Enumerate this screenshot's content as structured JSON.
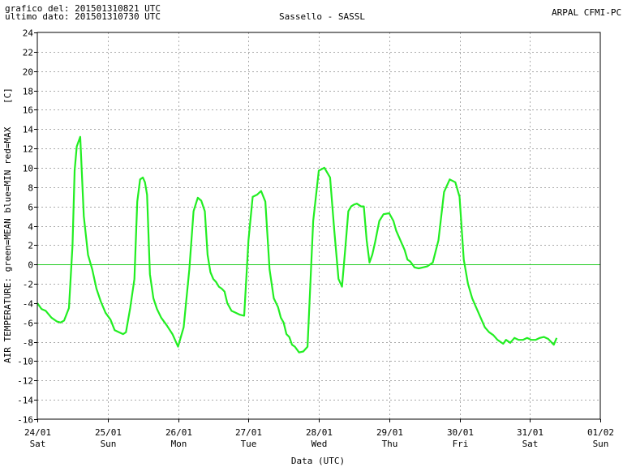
{
  "header": {
    "line1": "grafico del: 201501310821 UTC",
    "line2": "ultimo dato: 201501310730 UTC",
    "station": "Sassello - SASSL",
    "source": "ARPAL CFMI-PC"
  },
  "chart_data": {
    "type": "line",
    "title": "Sassello - SASSL",
    "ylabel": "AIR TEMPERATURE: green=MEAN  blue=MIN  red=MAX",
    "yunit": "[C]",
    "xlabel": "Data (UTC)",
    "ylim": [
      -16,
      24
    ],
    "yticks": [
      24,
      22,
      20,
      18,
      16,
      14,
      12,
      10,
      8,
      6,
      4,
      2,
      0,
      -2,
      -4,
      -6,
      -8,
      -10,
      -12,
      -14,
      -16
    ],
    "xlim": [
      0,
      8
    ],
    "xticks": [
      {
        "date": "24/01",
        "day": "Sat"
      },
      {
        "date": "25/01",
        "day": "Sun"
      },
      {
        "date": "26/01",
        "day": "Mon"
      },
      {
        "date": "27/01",
        "day": "Tue"
      },
      {
        "date": "28/01",
        "day": "Wed"
      },
      {
        "date": "29/01",
        "day": "Thu"
      },
      {
        "date": "30/01",
        "day": "Fri"
      },
      {
        "date": "31/01",
        "day": "Sat"
      },
      {
        "date": "01/02",
        "day": "Sun"
      }
    ],
    "grid": true,
    "colors": {
      "mean": "#22ee22",
      "zero_line": "#22cc22",
      "grid": "#aaaaaa",
      "axis": "#000000"
    },
    "series": [
      {
        "name": "MEAN",
        "x": [
          0.0,
          0.06,
          0.12,
          0.2,
          0.28,
          0.33,
          0.38,
          0.45,
          0.5,
          0.53,
          0.56,
          0.61,
          0.66,
          0.72,
          0.78,
          0.84,
          0.9,
          0.97,
          1.04,
          1.1,
          1.16,
          1.22,
          1.26,
          1.32,
          1.38,
          1.42,
          1.46,
          1.5,
          1.53,
          1.56,
          1.6,
          1.65,
          1.7,
          1.76,
          1.84,
          1.92,
          2.0,
          2.08,
          2.16,
          2.22,
          2.28,
          2.33,
          2.38,
          2.42,
          2.46,
          2.5,
          2.54,
          2.58,
          2.62,
          2.66,
          2.7,
          2.76,
          2.82,
          2.88,
          2.94,
          3.0,
          3.06,
          3.12,
          3.18,
          3.24,
          3.3,
          3.36,
          3.42,
          3.46,
          3.5,
          3.54,
          3.58,
          3.62,
          3.66,
          3.72,
          3.78,
          3.84,
          3.92,
          4.0,
          4.08,
          4.16,
          4.22,
          4.28,
          4.33,
          4.38,
          4.42,
          4.46,
          4.5,
          4.54,
          4.6,
          4.64,
          4.68,
          4.72,
          4.76,
          4.8,
          4.86,
          4.92,
          5.0,
          5.06,
          5.1,
          5.16,
          5.22,
          5.26,
          5.3,
          5.36,
          5.42,
          5.48,
          5.54,
          5.62,
          5.7,
          5.78,
          5.86,
          5.94,
          6.0,
          6.06,
          6.12,
          6.18,
          6.24,
          6.3,
          6.36,
          6.42,
          6.48,
          6.54,
          6.58,
          6.62,
          6.66,
          6.72,
          6.78,
          6.84,
          6.9,
          6.96,
          7.02,
          7.08,
          7.14,
          7.2,
          7.26,
          7.3,
          7.34,
          7.38
        ],
        "y": [
          -4.0,
          -4.6,
          -4.8,
          -5.5,
          -5.9,
          -6.0,
          -5.8,
          -4.5,
          2.0,
          9.7,
          12.2,
          13.2,
          5.0,
          1.0,
          -0.5,
          -2.5,
          -3.8,
          -5.0,
          -5.7,
          -6.8,
          -7.0,
          -7.2,
          -7.0,
          -4.5,
          -1.5,
          6.5,
          8.8,
          9.0,
          8.5,
          7.2,
          -1.0,
          -3.5,
          -4.6,
          -5.5,
          -6.3,
          -7.2,
          -8.5,
          -6.5,
          -0.5,
          5.5,
          6.9,
          6.6,
          5.5,
          1.0,
          -0.8,
          -1.5,
          -1.8,
          -2.3,
          -2.5,
          -2.8,
          -4.0,
          -4.8,
          -5.0,
          -5.2,
          -5.3,
          2.5,
          7.0,
          7.2,
          7.6,
          6.5,
          -0.5,
          -3.5,
          -4.4,
          -5.5,
          -6.0,
          -7.2,
          -7.5,
          -8.3,
          -8.5,
          -9.1,
          -9.0,
          -8.5,
          4.5,
          9.7,
          10.0,
          9.0,
          3.5,
          -1.5,
          -2.3,
          2.0,
          5.5,
          6.0,
          6.2,
          6.3,
          6.0,
          6.0,
          2.5,
          0.2,
          1.0,
          2.3,
          4.5,
          5.2,
          5.3,
          4.5,
          3.5,
          2.5,
          1.5,
          0.5,
          0.3,
          -0.3,
          -0.4,
          -0.3,
          -0.2,
          0.2,
          2.5,
          7.5,
          8.8,
          8.5,
          7.0,
          0.5,
          -2.0,
          -3.5,
          -4.5,
          -5.5,
          -6.5,
          -7.0,
          -7.3,
          -7.8,
          -8.0,
          -8.2,
          -7.8,
          -8.1,
          -7.6,
          -7.8,
          -7.8,
          -7.6,
          -7.8,
          -7.8,
          -7.6,
          -7.5,
          -7.7,
          -8.0,
          -8.3,
          -7.6
        ]
      }
    ]
  }
}
